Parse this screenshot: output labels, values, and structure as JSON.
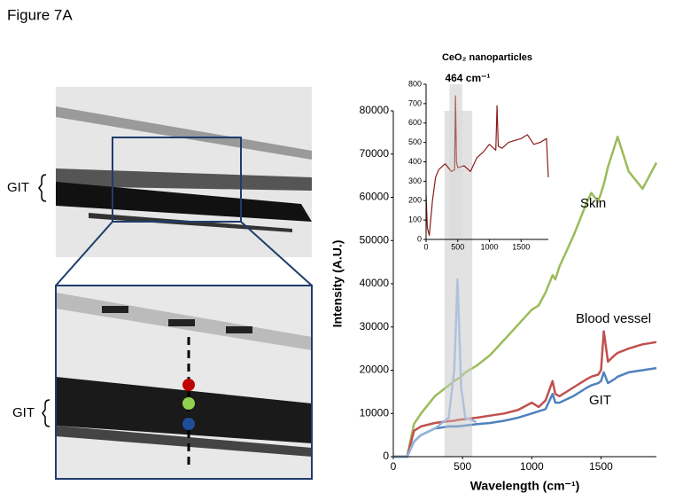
{
  "figure": {
    "label": "Figure 7A",
    "image_labels": [
      "GIT",
      "GIT"
    ]
  },
  "chart_data": [
    {
      "type": "line",
      "xlabel": "Wavelength (cm⁻¹)",
      "ylabel": "Intensity (A.U.)",
      "xlim": [
        0,
        1900
      ],
      "ylim": [
        0,
        80000
      ],
      "xticks": [
        0,
        500,
        1000,
        1500
      ],
      "yticks": [
        0,
        10000,
        20000,
        30000,
        40000,
        50000,
        60000,
        70000,
        80000
      ],
      "highlight": [
        370,
        570
      ],
      "series": [
        {
          "name": "Skin",
          "color": "#9bbb59",
          "x": [
            0,
            100,
            150,
            200,
            300,
            400,
            440,
            464,
            490,
            520,
            600,
            700,
            800,
            900,
            1000,
            1050,
            1100,
            1150,
            1170,
            1200,
            1300,
            1400,
            1430,
            1480,
            1500,
            1520,
            1550,
            1600,
            1620,
            1700,
            1800,
            1900
          ],
          "values": [
            0,
            0,
            7600,
            10000,
            14000,
            16500,
            17500,
            18000,
            18500,
            19500,
            21000,
            23500,
            27000,
            30500,
            34000,
            35000,
            38000,
            42000,
            41000,
            44000,
            51000,
            59000,
            61000,
            59000,
            61000,
            63000,
            67000,
            72000,
            74000,
            66000,
            62000,
            68000
          ]
        },
        {
          "name": "Blood vessel",
          "color": "#c0504d",
          "x": [
            0,
            100,
            150,
            200,
            300,
            400,
            440,
            464,
            490,
            520,
            600,
            700,
            800,
            900,
            1000,
            1050,
            1100,
            1150,
            1170,
            1200,
            1300,
            1400,
            1430,
            1480,
            1500,
            1520,
            1550,
            1600,
            1620,
            1700,
            1800,
            1900
          ],
          "values": [
            0,
            0,
            6000,
            7000,
            7800,
            8200,
            8300,
            8500,
            8600,
            8700,
            9000,
            9500,
            10000,
            10800,
            12500,
            11500,
            13000,
            17500,
            14500,
            14000,
            16000,
            18000,
            18500,
            19000,
            20000,
            29000,
            22000,
            23500,
            24000,
            25000,
            26000,
            26500
          ]
        },
        {
          "name": "GIT",
          "color": "#4f81bd",
          "x": [
            0,
            100,
            150,
            200,
            300,
            400,
            440,
            464,
            490,
            520,
            600,
            700,
            800,
            900,
            1000,
            1050,
            1100,
            1150,
            1170,
            1200,
            1300,
            1400,
            1430,
            1480,
            1500,
            1520,
            1550,
            1600,
            1620,
            1700,
            1800,
            1900
          ],
          "values": [
            0,
            0,
            3500,
            5000,
            6500,
            7000,
            7000,
            7000,
            7100,
            7200,
            7500,
            7800,
            8300,
            9000,
            10000,
            10500,
            11000,
            14500,
            12500,
            12500,
            14000,
            16000,
            16500,
            17000,
            17500,
            19500,
            17000,
            18000,
            18500,
            19500,
            20000,
            20500
          ]
        },
        {
          "color": "#95b3d7",
          "x": [
            0,
            100,
            150,
            200,
            300,
            400,
            440,
            464,
            490,
            520,
            600,
            700,
            800,
            900,
            1000,
            1050,
            1100,
            1150,
            1170,
            1200,
            1300,
            1400,
            1430,
            1480,
            1500,
            1520,
            1550,
            1600,
            1620,
            1700,
            1800,
            1900
          ],
          "values": [
            0,
            0,
            3500,
            5000,
            6500,
            9000,
            20000,
            41000,
            16000,
            9000,
            8000,
            null,
            null,
            null,
            null,
            null,
            null,
            null,
            null,
            null,
            null,
            null,
            null,
            null,
            null,
            null,
            null,
            null,
            null,
            null,
            null,
            null
          ]
        }
      ]
    },
    {
      "type": "line",
      "title": "CeO₂ nanoparticles",
      "annotation": "464 cm⁻¹",
      "xlim": [
        0,
        1930
      ],
      "ylim": [
        0,
        800
      ],
      "xticks": [
        0,
        500,
        1000,
        1500
      ],
      "yticks": [
        0,
        100,
        200,
        300,
        400,
        500,
        600,
        700,
        800
      ],
      "highlight": [
        370,
        570
      ],
      "series": [
        {
          "color": "#8b1a1a",
          "x": [
            0,
            20,
            50,
            100,
            150,
            200,
            300,
            400,
            450,
            464,
            480,
            500,
            600,
            700,
            800,
            900,
            1000,
            1100,
            1120,
            1140,
            1200,
            1300,
            1400,
            1500,
            1600,
            1700,
            1800,
            1900,
            1930
          ],
          "values": [
            230,
            60,
            20,
            200,
            320,
            360,
            390,
            350,
            360,
            740,
            400,
            370,
            380,
            350,
            420,
            450,
            490,
            460,
            690,
            480,
            470,
            500,
            510,
            520,
            540,
            490,
            500,
            520,
            320
          ]
        }
      ]
    }
  ]
}
